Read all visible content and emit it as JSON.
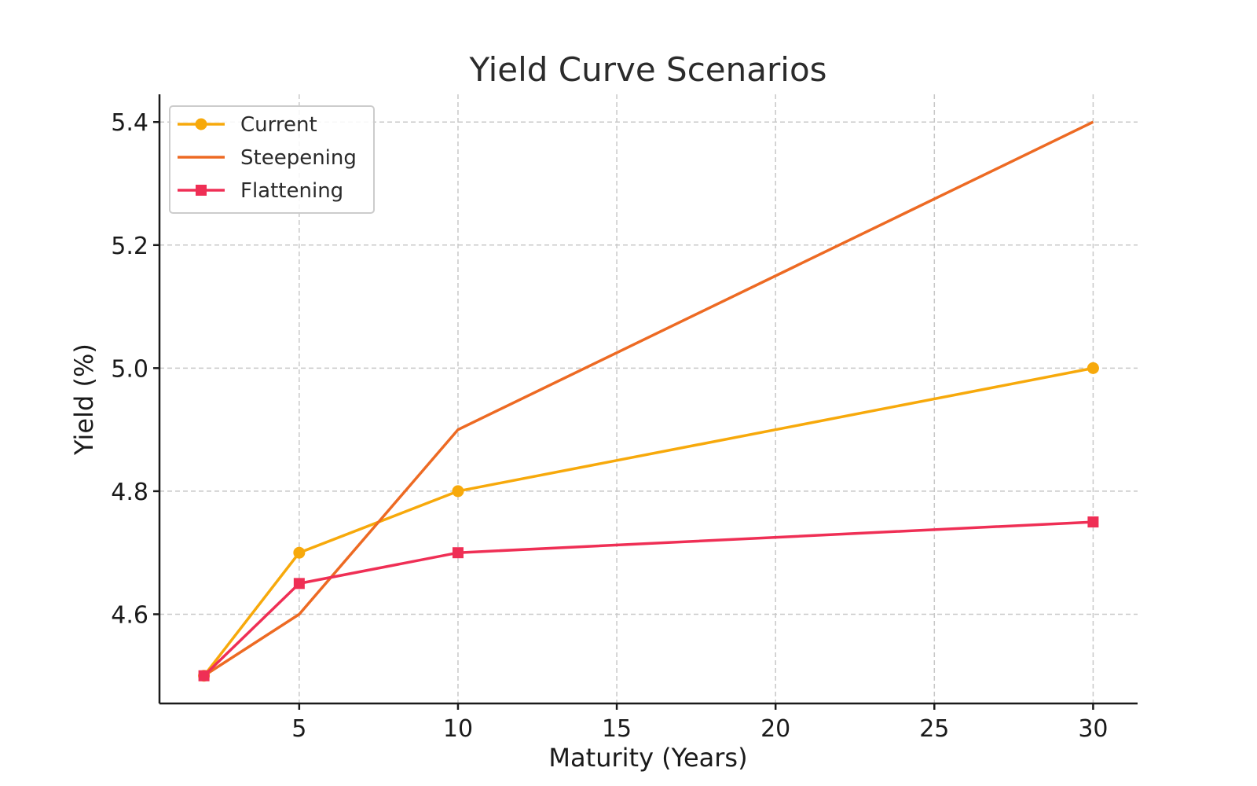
{
  "chart_data": {
    "type": "line",
    "title": "Yield Curve Scenarios",
    "xlabel": "Maturity (Years)",
    "ylabel": "Yield (%)",
    "x": [
      2,
      5,
      10,
      30
    ],
    "xlim": [
      0.6,
      31.4
    ],
    "ylim": [
      4.455,
      5.445
    ],
    "xticks": [
      5,
      10,
      15,
      20,
      25,
      30
    ],
    "yticks": [
      4.6,
      4.8,
      5.0,
      5.2,
      5.4
    ],
    "ytick_labels": [
      "4.6",
      "4.8",
      "5.0",
      "5.2",
      "5.4"
    ],
    "grid": true,
    "legend_position": "top-left",
    "series": [
      {
        "name": "Current",
        "values": [
          4.5,
          4.7,
          4.8,
          5.0
        ],
        "color": "#f7a90b",
        "marker": "circle"
      },
      {
        "name": "Steepening",
        "values": [
          4.5,
          4.6,
          4.9,
          5.4
        ],
        "color": "#ed6a23",
        "marker": "none"
      },
      {
        "name": "Flattening",
        "values": [
          4.5,
          4.65,
          4.7,
          4.75
        ],
        "color": "#ef2f55",
        "marker": "square"
      }
    ]
  }
}
